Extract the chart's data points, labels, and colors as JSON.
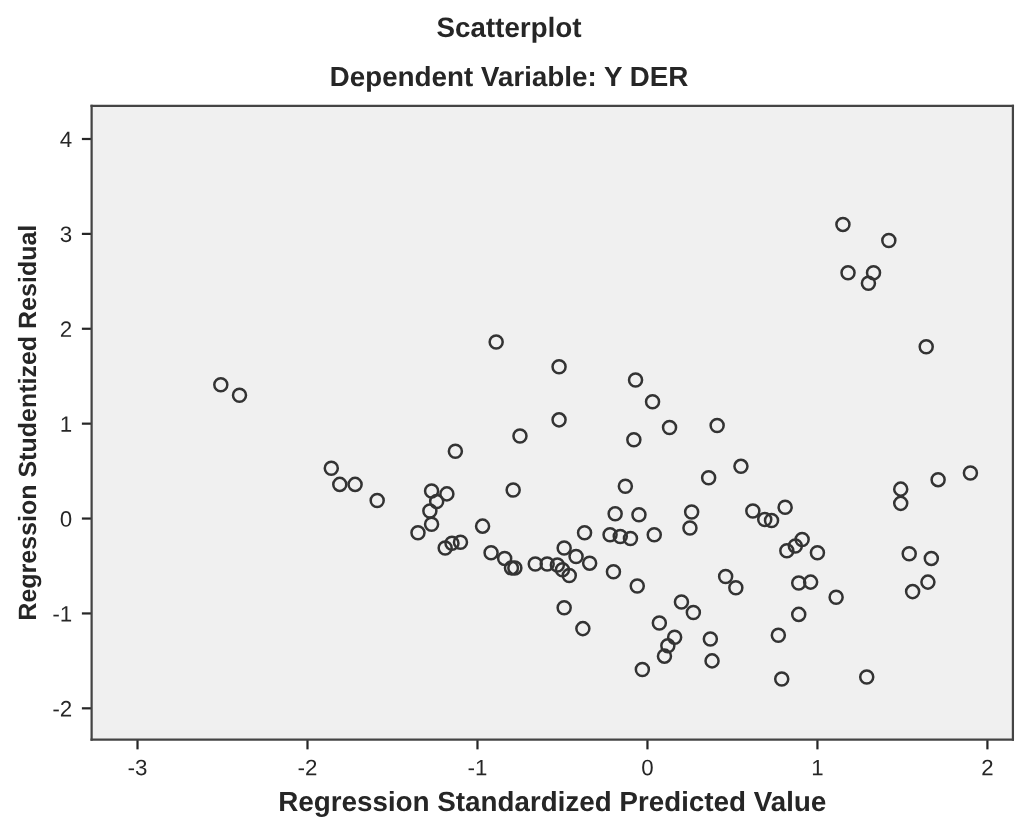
{
  "chart_data": {
    "type": "scatter",
    "title": "Scatterplot",
    "subtitle": "Dependent Variable: Y DER",
    "xlabel": "Regression Standardized Predicted Value",
    "ylabel": "Regression Studentized Residual",
    "xlim": [
      -3.27,
      2.15
    ],
    "ylim": [
      -2.33,
      4.35
    ],
    "xticks": [
      -3,
      -2,
      -1,
      0,
      1,
      2
    ],
    "yticks": [
      -2,
      -1,
      0,
      1,
      2,
      3,
      4
    ],
    "grid": false,
    "legend": false,
    "marker": "circle",
    "series": [
      {
        "color": "#333333",
        "x": [
          -2.51,
          -2.4,
          -0.89,
          -1.13,
          -0.75,
          1.15,
          1.42,
          1.18,
          1.33,
          1.3,
          1.64,
          -0.52,
          -0.52,
          -0.07,
          0.03,
          0.13,
          0.41,
          -0.08,
          -1.86,
          -1.81,
          -1.72,
          -1.59,
          -1.27,
          -1.18,
          -1.24,
          -1.28,
          -1.27,
          -1.35,
          -0.97,
          -0.79,
          -1.19,
          -1.15,
          -1.1,
          -0.92,
          -0.84,
          -0.8,
          -0.78,
          -0.66,
          0.55,
          0.36,
          -0.13,
          -0.19,
          -0.05,
          0.26,
          0.25,
          0.62,
          0.69,
          0.73,
          0.81,
          -0.37,
          -0.22,
          -0.16,
          -0.1,
          0.04,
          1.49,
          1.49,
          1.71,
          1.9,
          -0.59,
          -0.53,
          -0.49,
          -0.5,
          -0.46,
          -0.42,
          -0.34,
          -0.2,
          -0.06,
          0.91,
          0.87,
          0.82,
          1.0,
          1.54,
          1.67,
          0.46,
          0.52,
          0.89,
          0.96,
          1.11,
          1.56,
          1.65,
          -0.49,
          0.2,
          0.27,
          0.89,
          -0.38,
          0.07,
          0.16,
          0.12,
          0.1,
          0.37,
          0.38,
          0.77,
          -0.03,
          0.79,
          1.29
        ],
        "values": [
          1.41,
          1.3,
          1.86,
          0.71,
          0.87,
          3.1,
          2.93,
          2.59,
          2.59,
          2.48,
          1.81,
          1.6,
          1.04,
          1.46,
          1.23,
          0.96,
          0.98,
          0.83,
          0.53,
          0.36,
          0.36,
          0.19,
          0.29,
          0.26,
          0.18,
          0.08,
          -0.06,
          -0.15,
          -0.08,
          0.3,
          -0.31,
          -0.26,
          -0.25,
          -0.36,
          -0.42,
          -0.52,
          -0.52,
          -0.48,
          0.55,
          0.43,
          0.34,
          0.05,
          0.04,
          0.07,
          -0.1,
          0.08,
          -0.01,
          -0.02,
          0.12,
          -0.15,
          -0.17,
          -0.19,
          -0.21,
          -0.17,
          0.31,
          0.16,
          0.41,
          0.48,
          -0.48,
          -0.49,
          -0.31,
          -0.54,
          -0.6,
          -0.4,
          -0.47,
          -0.56,
          -0.71,
          -0.22,
          -0.29,
          -0.34,
          -0.36,
          -0.37,
          -0.42,
          -0.61,
          -0.73,
          -0.68,
          -0.67,
          -0.83,
          -0.77,
          -0.67,
          -0.94,
          -0.88,
          -0.99,
          -1.01,
          -1.16,
          -1.1,
          -1.25,
          -1.34,
          -1.45,
          -1.27,
          -1.5,
          -1.23,
          -1.59,
          -1.69,
          -1.67
        ]
      }
    ]
  }
}
